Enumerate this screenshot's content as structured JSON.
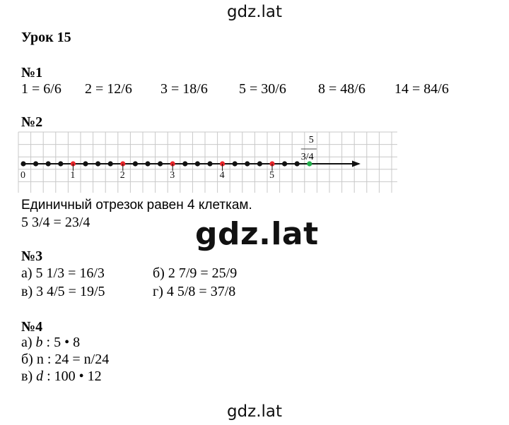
{
  "watermark": "gdz.lat",
  "lesson_title": "Урок 15",
  "task1": {
    "heading": "№1",
    "items": [
      "1 = 6/6",
      "2 = 12/6",
      "3 = 18/6",
      "5 = 30/6",
      "8 = 48/6",
      "14 = 84/6"
    ]
  },
  "task2": {
    "heading": "№2",
    "number_line": {
      "ticks": [
        "0",
        "1",
        "2",
        "3",
        "4",
        "5"
      ],
      "units_per_cell": 0.25,
      "marked_points": [
        1,
        2,
        3,
        4,
        5
      ],
      "answer_point": 5.75,
      "answer_label_whole": "5",
      "answer_label_fraction": "3/4",
      "colors": {
        "grid": "#c8c8c8",
        "point": "#111111",
        "marked": "#e8262b",
        "answer": "#22b14c"
      }
    },
    "text_line1": "Единичный отрезок равен 4 клеткам.",
    "text_line2": "5 3/4 = 23/4"
  },
  "task3": {
    "heading": "№3",
    "a": "а) 5 1/3 = 16/3",
    "b": "б) 2 7/9 = 25/9",
    "v": "в) 3 4/5 = 19/5",
    "g": "г) 4 5/8 = 37/8"
  },
  "task4": {
    "heading": "№4",
    "a_prefix": "а) ",
    "a_var": "b",
    "a_rest": " : 5 • 8",
    "b_line": "б) n : 24 = n/24",
    "v_prefix": "в) ",
    "v_var": "d",
    "v_rest": " : 100 • 12"
  }
}
